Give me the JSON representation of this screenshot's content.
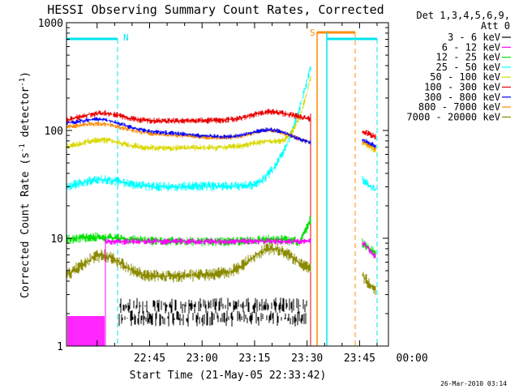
{
  "chart_data": {
    "type": "line",
    "title": "HESSI Observing Summary Count Rates, Corrected",
    "xlabel": "Start Time (21-May-05 22:33:42)",
    "ylabel_main": "Corrected Count Rate (s",
    "ylabel_exp1": "-1",
    "ylabel_mid": " detector",
    "ylabel_exp2": "-1",
    "ylabel_end": ")",
    "y_scale": "log",
    "ylim": [
      1,
      1000
    ],
    "xlim_minutes": [
      -8.75,
      83.25
    ],
    "x_tick_labels": [
      "22:45",
      "23:00",
      "23:15",
      "23:30",
      "23:45",
      "00:00"
    ],
    "x_tick_minutes": [
      15,
      30,
      45,
      60,
      75,
      90
    ],
    "x_tick_minutes_note": "",
    "y_tick_labels": [
      "1",
      "10",
      "100",
      "1000"
    ],
    "y_tick_values": [
      1,
      10,
      100,
      1000
    ],
    "legend_header": [
      "Det 1,3,4,5,6,9,",
      "Att 0"
    ],
    "legend_position": "right",
    "footer_date": "26-Mar-2010 03:14",
    "flags": [
      {
        "label": "N",
        "color": "#00e5ee"
      },
      {
        "label": "S",
        "color": "#ff8c00"
      }
    ],
    "series": [
      {
        "name": "3 - 6 keV",
        "color": "#000000"
      },
      {
        "name": "6 - 12 keV",
        "color": "#ff00ff"
      },
      {
        "name": "12 - 25 keV",
        "color": "#00e000"
      },
      {
        "name": "25 - 50 keV",
        "color": "#00ffff"
      },
      {
        "name": "50 - 100 keV",
        "color": "#d8d800"
      },
      {
        "name": "100 - 300 keV",
        "color": "#e80000"
      },
      {
        "name": "300 - 800 keV",
        "color": "#0000ff"
      },
      {
        "name": "800 - 7000 keV",
        "color": "#ff8800"
      },
      {
        "name": "7000 - 20000 keV",
        "color": "#8b8b00"
      }
    ],
    "grid": false
  }
}
